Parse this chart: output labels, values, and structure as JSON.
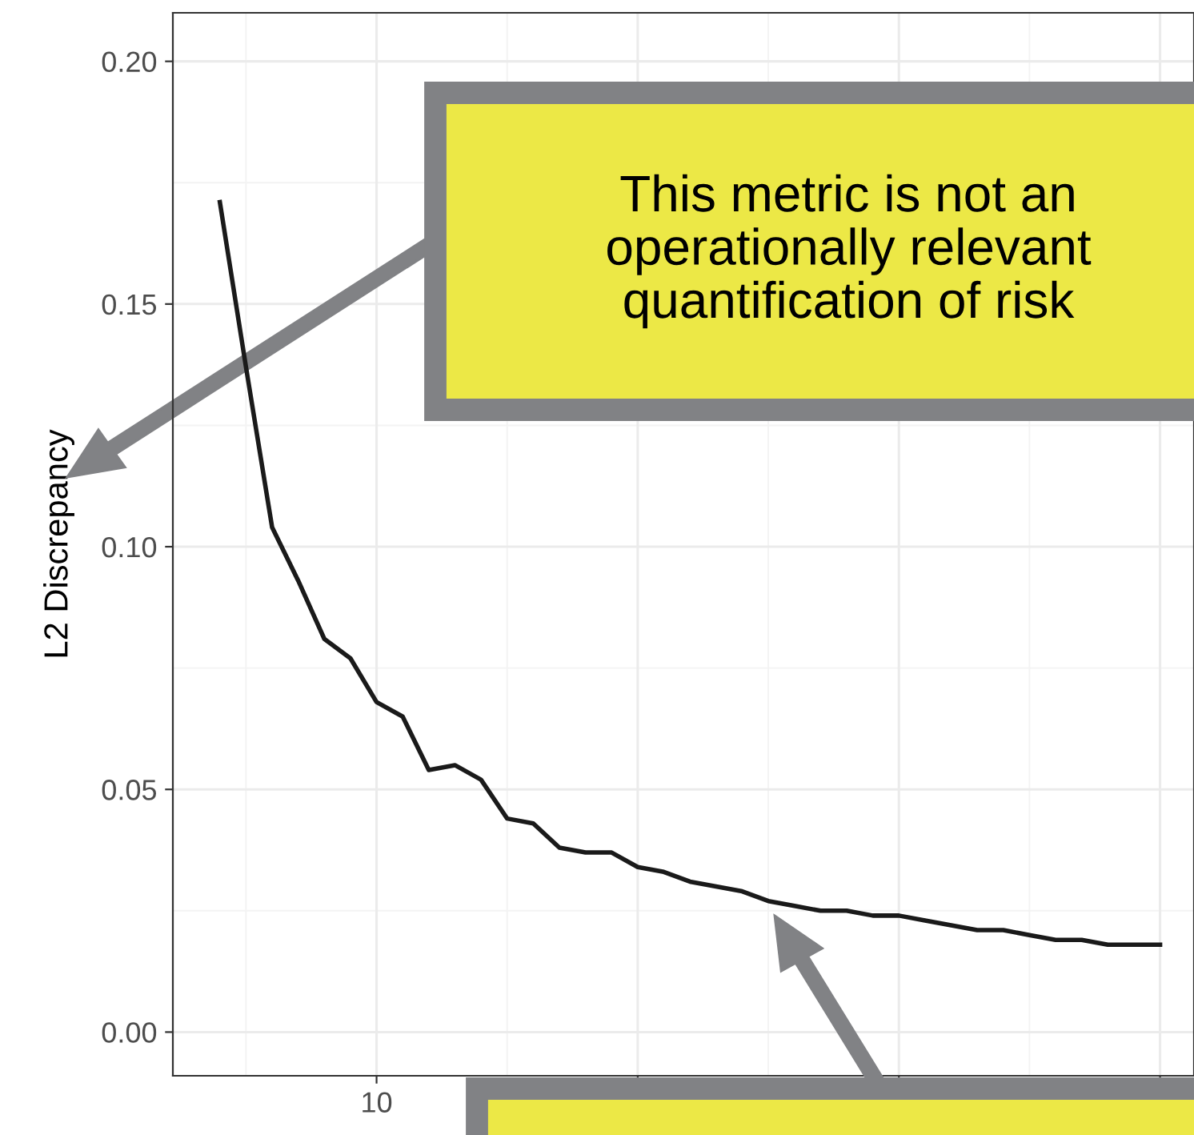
{
  "chart_data": {
    "type": "line",
    "ylabel": "L2 Discrepancy",
    "categories": [
      null,
      null,
      null,
      null,
      null,
      null,
      "10",
      null,
      null,
      null,
      null,
      null,
      null,
      null,
      null,
      null,
      null,
      null,
      null,
      null,
      null,
      null,
      null,
      null,
      null,
      null,
      null,
      null,
      null,
      null,
      null,
      null,
      null,
      null,
      null,
      null,
      null
    ],
    "series": [
      {
        "color": "#1a1a1a",
        "values": [
          0.171,
          0.137,
          0.104,
          0.093,
          0.081,
          0.077,
          0.068,
          0.065,
          0.054,
          0.055,
          0.052,
          0.044,
          0.043,
          0.038,
          0.037,
          0.037,
          0.034,
          0.033,
          0.031,
          0.03,
          0.029,
          0.027,
          0.026,
          0.025,
          0.025,
          0.024,
          0.024,
          0.023,
          0.022,
          0.021,
          0.021,
          0.02,
          0.019,
          0.019,
          0.018,
          0.018,
          0.018
        ]
      }
    ],
    "ylim": [
      -0.009,
      0.21
    ],
    "yticks": [
      {
        "value": 0,
        "label": "0.00"
      },
      {
        "value": 0.05,
        "label": "0.05"
      },
      {
        "value": 0.1,
        "label": "0.10"
      },
      {
        "value": 0.15,
        "label": "0.15"
      },
      {
        "value": 0.2,
        "label": "0.20"
      }
    ],
    "grid": true,
    "marker": "none",
    "line_style": "solid",
    "annotations": [
      "This metric is not an\noperationally relevant\nquantification of risk"
    ]
  }
}
